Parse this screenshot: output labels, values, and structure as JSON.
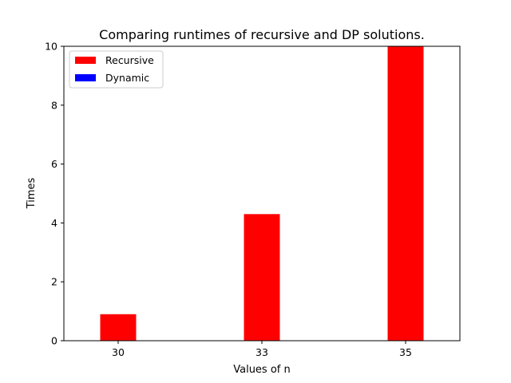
{
  "chart_data": {
    "type": "bar",
    "title": "Comparing runtimes of recursive and DP solutions.",
    "xlabel": "Values of n",
    "ylabel": "Times",
    "categories": [
      "30",
      "33",
      "35"
    ],
    "series": [
      {
        "name": "Recursive",
        "color": "#ff0000",
        "values": [
          0.9,
          4.3,
          10.0
        ]
      },
      {
        "name": "Dynamic",
        "color": "#0000ff",
        "values": [
          0.0,
          0.0,
          0.0
        ]
      }
    ],
    "ylim": [
      0,
      10
    ],
    "yticks": [
      "0",
      "2",
      "4",
      "6",
      "8",
      "10"
    ],
    "grid": false,
    "legend_position": "top-left"
  }
}
